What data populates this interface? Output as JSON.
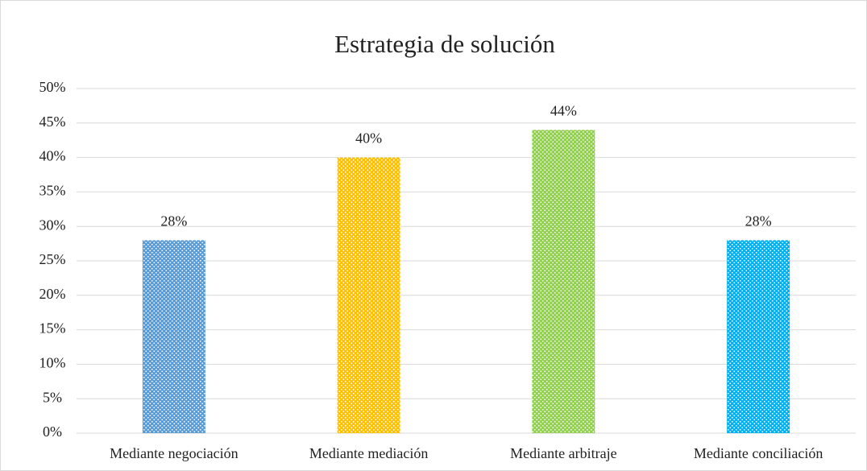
{
  "chart_data": {
    "type": "bar",
    "title": "Estrategia de solución",
    "categories": [
      "Mediante negociación",
      "Mediante mediación",
      "Mediante arbitraje",
      "Mediante conciliación"
    ],
    "values": [
      28,
      40,
      44,
      28
    ],
    "value_labels": [
      "28%",
      "40%",
      "44%",
      "28%"
    ],
    "colors": [
      "#5b9bd5",
      "#ffc000",
      "#92d050",
      "#00b0f0"
    ],
    "ylim": [
      0,
      50
    ],
    "yticks": [
      {
        "value": 0,
        "label": "0%"
      },
      {
        "value": 5,
        "label": "5%"
      },
      {
        "value": 10,
        "label": "10%"
      },
      {
        "value": 15,
        "label": "15%"
      },
      {
        "value": 20,
        "label": "20%"
      },
      {
        "value": 25,
        "label": "25%"
      },
      {
        "value": 30,
        "label": "30%"
      },
      {
        "value": 35,
        "label": "35%"
      },
      {
        "value": 40,
        "label": "40%"
      },
      {
        "value": 45,
        "label": "45%"
      },
      {
        "value": 50,
        "label": "50%"
      }
    ],
    "grid": true
  }
}
